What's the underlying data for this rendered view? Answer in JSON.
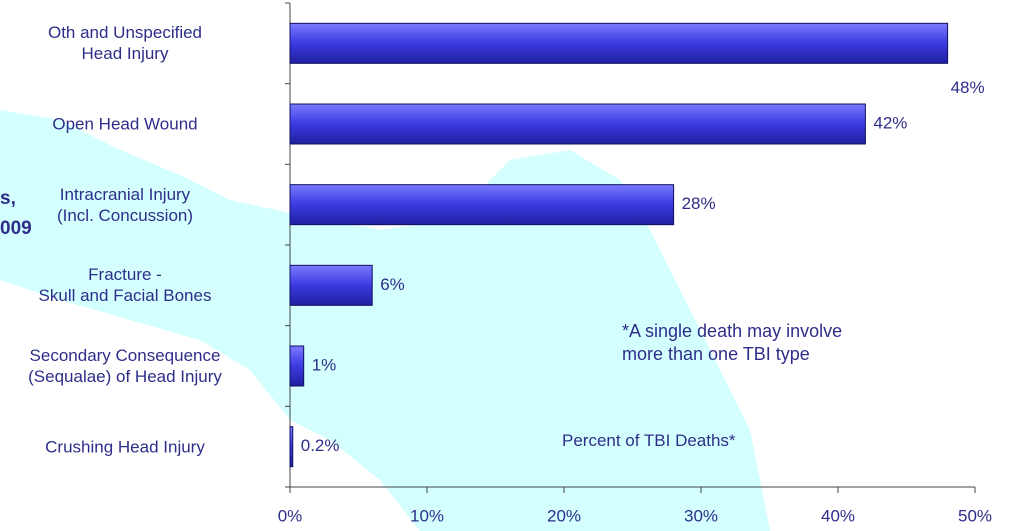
{
  "chart_data": {
    "type": "bar",
    "orientation": "horizontal",
    "title_fragments": [
      "s,",
      "009"
    ],
    "categories": [
      "Oth and Unspecified\nHead Injury",
      "Open Head Wound",
      "Intracranial Injury\n(Incl. Concussion)",
      "Fracture -\nSkull and Facial Bones",
      "Secondary Consequence\n(Sequalae) of Head Injury",
      "Crushing Head Injury"
    ],
    "values": [
      48,
      42,
      28,
      6,
      1,
      0.2
    ],
    "value_labels": [
      "48%",
      "42%",
      "28%",
      "6%",
      "1%",
      "0.2%"
    ],
    "color": "#3a3ae0",
    "xlim": [
      0,
      50
    ],
    "xticks": [
      {
        "value": 0,
        "label": "0%"
      },
      {
        "value": 10,
        "label": "10%"
      },
      {
        "value": 20,
        "label": "20%"
      },
      {
        "value": 30,
        "label": "30%"
      },
      {
        "value": 40,
        "label": "40%"
      },
      {
        "value": 50,
        "label": "50%"
      }
    ],
    "xlabel": "Percent of TBI Deaths*",
    "annotation": "*A single death may involve\nmore than one TBI type"
  }
}
